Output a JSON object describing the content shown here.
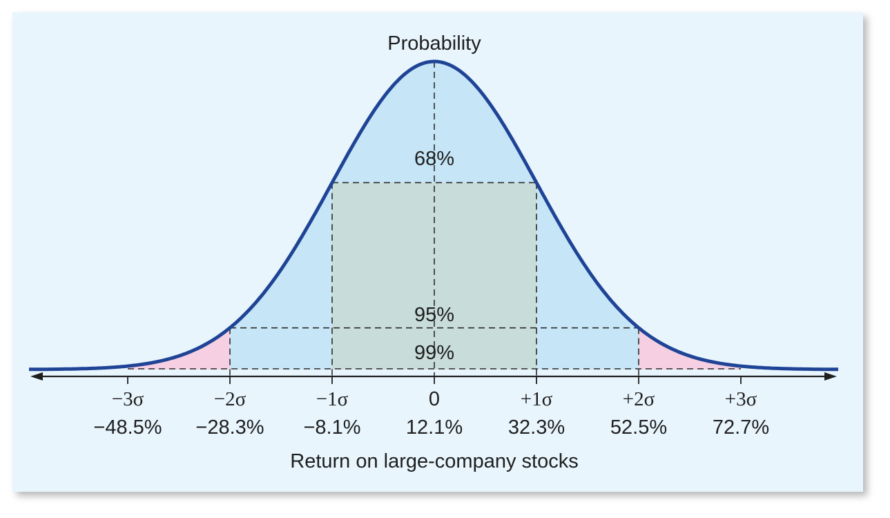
{
  "chart_data": {
    "type": "area",
    "title": "Probability",
    "xlabel": "Return on large-company stocks",
    "ylabel": "Probability",
    "mean": 12.1,
    "std_dev": 20.2,
    "x_ticks": [
      {
        "sigma": "−3σ",
        "value": -48.5,
        "label": "−48.5%"
      },
      {
        "sigma": "−2σ",
        "value": -28.3,
        "label": "−28.3%"
      },
      {
        "sigma": "−1σ",
        "value": -8.1,
        "label": "−8.1%"
      },
      {
        "sigma": "0",
        "value": 12.1,
        "label": "12.1%"
      },
      {
        "sigma": "+1σ",
        "value": 32.3,
        "label": "32.3%"
      },
      {
        "sigma": "+2σ",
        "value": 52.5,
        "label": "52.5%"
      },
      {
        "sigma": "+3σ",
        "value": 72.7,
        "label": "72.7%"
      }
    ],
    "regions": [
      {
        "label": "68%",
        "from_sigma": -1,
        "to_sigma": 1
      },
      {
        "label": "95%",
        "from_sigma": -2,
        "to_sigma": 2
      },
      {
        "label": "99%",
        "from_sigma": -3,
        "to_sigma": 3
      }
    ],
    "colors": {
      "background": "#e8f5fd",
      "curve": "#1f4496",
      "one_sigma_fill": "#c8dcd9",
      "two_sigma_fill": "#c6e6f8",
      "three_sigma_fill": "#f6d0e2",
      "axis": "#1e1e1e"
    }
  }
}
